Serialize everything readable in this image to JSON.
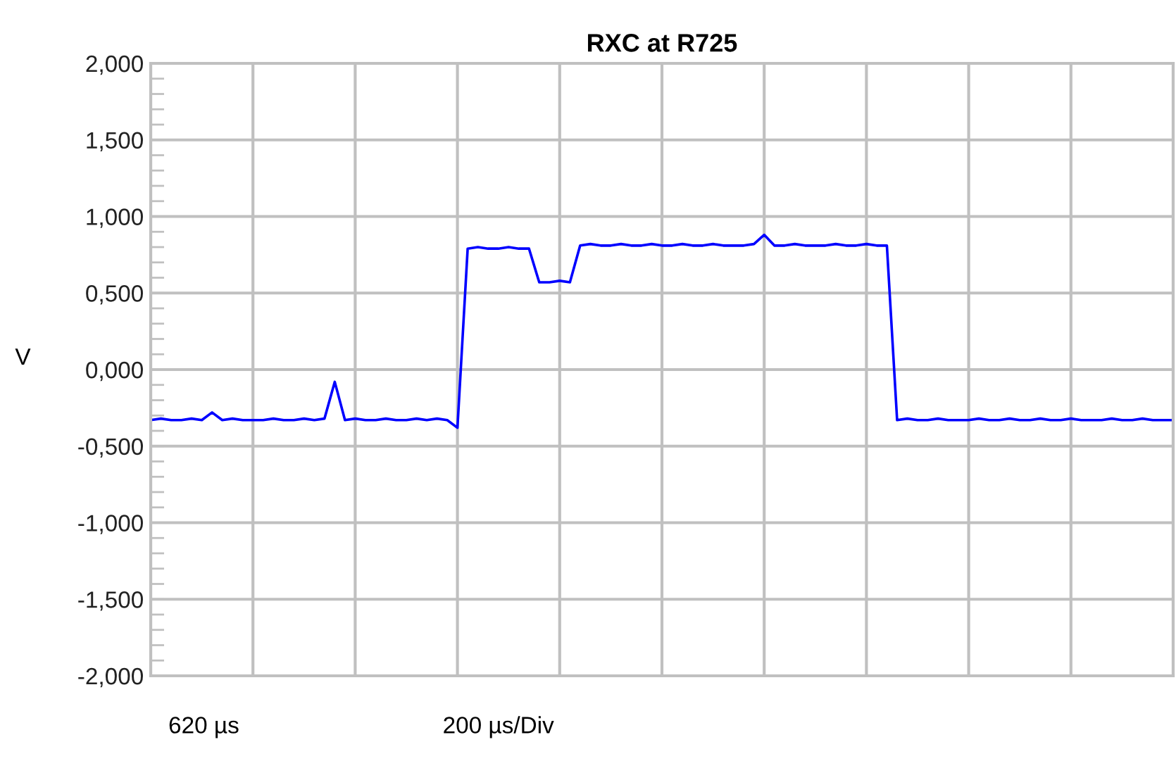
{
  "chart_data": {
    "type": "line",
    "title": "RXC at R725",
    "ylabel": "V",
    "categories": [
      null,
      null,
      null,
      null,
      null,
      null,
      null,
      null,
      null,
      null,
      null,
      null,
      null,
      null,
      null,
      null,
      null,
      null,
      null,
      null,
      null,
      null,
      null,
      null,
      null,
      null,
      null,
      null,
      null,
      null,
      null,
      null,
      null,
      null,
      null,
      null,
      null,
      null,
      null,
      null,
      null,
      null,
      null,
      null,
      null,
      null,
      null,
      null,
      null,
      null,
      null,
      null,
      null,
      null,
      null,
      null,
      null,
      null,
      null,
      null,
      null,
      null,
      null,
      null,
      null,
      null,
      null,
      null,
      null,
      null,
      null,
      null,
      null,
      null,
      null,
      null,
      null,
      null,
      null,
      null,
      null,
      null,
      null,
      null,
      null,
      null,
      null,
      null,
      null,
      null,
      null,
      null,
      null,
      null,
      null,
      null,
      null,
      null,
      null,
      null,
      null
    ],
    "series": [
      {
        "color": "#0000ff",
        "values": [
          -0.33,
          -0.32,
          -0.33,
          -0.33,
          -0.32,
          -0.33,
          -0.28,
          -0.33,
          -0.32,
          -0.33,
          -0.33,
          -0.33,
          -0.32,
          -0.33,
          -0.33,
          -0.32,
          -0.33,
          -0.32,
          -0.08,
          -0.33,
          -0.32,
          -0.33,
          -0.33,
          -0.32,
          -0.33,
          -0.33,
          -0.32,
          -0.33,
          -0.32,
          -0.33,
          -0.38,
          0.79,
          0.8,
          0.79,
          0.79,
          0.8,
          0.79,
          0.79,
          0.57,
          0.57,
          0.58,
          0.57,
          0.81,
          0.82,
          0.81,
          0.81,
          0.82,
          0.81,
          0.81,
          0.82,
          0.81,
          0.81,
          0.82,
          0.81,
          0.81,
          0.82,
          0.81,
          0.81,
          0.81,
          0.82,
          0.88,
          0.81,
          0.81,
          0.82,
          0.81,
          0.81,
          0.81,
          0.82,
          0.81,
          0.81,
          0.82,
          0.81,
          0.81,
          -0.33,
          -0.32,
          -0.33,
          -0.33,
          -0.32,
          -0.33,
          -0.33,
          -0.33,
          -0.32,
          -0.33,
          -0.33,
          -0.32,
          -0.33,
          -0.33,
          -0.32,
          -0.33,
          -0.33,
          -0.32,
          -0.33,
          -0.33,
          -0.33,
          -0.32,
          -0.33,
          -0.33,
          -0.32,
          -0.33,
          -0.33,
          -0.33
        ]
      }
    ],
    "ylim": [
      -2,
      2
    ],
    "yticks": [
      {
        "value": 2,
        "label": "2,000"
      },
      {
        "value": 1.5,
        "label": "1,500"
      },
      {
        "value": 1,
        "label": "1,000"
      },
      {
        "value": 0.5,
        "label": "0,500"
      },
      {
        "value": 0,
        "label": "0,000"
      },
      {
        "value": -0.5,
        "label": "-0,500"
      },
      {
        "value": -1,
        "label": "-1,000"
      },
      {
        "value": -1.5,
        "label": "-1,500"
      },
      {
        "value": -2,
        "label": "-2,000"
      }
    ],
    "grid": true,
    "tick_labels": "y",
    "line_style": "solid",
    "marker": "none",
    "annotations": [
      "620 µs",
      "200 µs/Div"
    ]
  }
}
